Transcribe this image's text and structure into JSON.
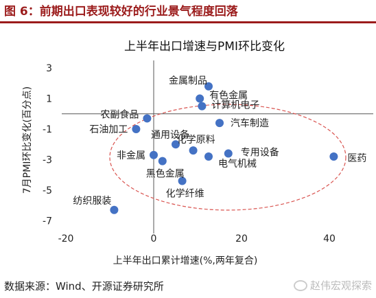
{
  "figure": {
    "title": "图 6：前期出口表现较好的行业景气程度回落",
    "source": "数据来源：Wind、开源证券研究所",
    "watermark": "赵伟宏观探索",
    "watermark_icon": "wechat-icon"
  },
  "colors": {
    "point": "#4472c4",
    "ellipse": "#d9534f",
    "title": "#9b1b1b"
  },
  "chart_data": {
    "type": "scatter",
    "title": "上半年出口增速与PMI环比变化",
    "xlabel": "上半年出口累计增速(%,两年复合)",
    "ylabel": "7月PMI环比变化(百分点)",
    "xlim": [
      -20,
      50
    ],
    "ylim": [
      -7.3,
      3.5
    ],
    "xticks": [
      -20,
      0,
      20,
      40
    ],
    "yticks": [
      3,
      1,
      -1,
      -3,
      -5,
      -7
    ],
    "grid": false,
    "points": [
      {
        "label": "金属制品",
        "x": 12.5,
        "y": 1.8
      },
      {
        "label": "有色金属",
        "x": 10.5,
        "y": 1.0
      },
      {
        "label": "计算机电子",
        "x": 11.0,
        "y": 0.5
      },
      {
        "label": "农副食品",
        "x": -1.5,
        "y": -0.3
      },
      {
        "label": "石油加工",
        "x": -4.0,
        "y": -1.0
      },
      {
        "label": "汽车制造",
        "x": 15.0,
        "y": -0.6
      },
      {
        "label": "通用设备",
        "x": 5.0,
        "y": -2.0
      },
      {
        "label": "化学原料",
        "x": 9.0,
        "y": -2.4
      },
      {
        "label": "专用设备",
        "x": 17.0,
        "y": -2.6
      },
      {
        "label": "医药",
        "x": 41.0,
        "y": -2.8
      },
      {
        "label": "非金属",
        "x": 0.0,
        "y": -2.7
      },
      {
        "label": "电气机械",
        "x": 12.5,
        "y": -2.8
      },
      {
        "label": "黑色金属",
        "x": 2.0,
        "y": -3.1
      },
      {
        "label": "化学纤维",
        "x": 6.5,
        "y": -4.4
      },
      {
        "label": "纺织服装",
        "x": -9.0,
        "y": -6.3
      }
    ]
  }
}
